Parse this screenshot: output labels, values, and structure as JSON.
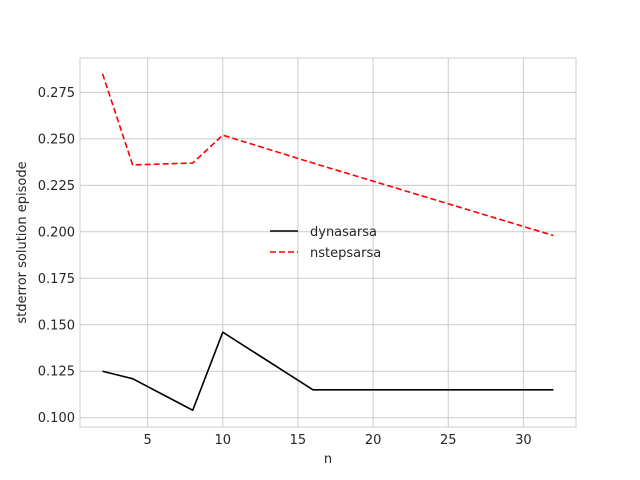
{
  "chart_data": {
    "type": "line",
    "xlabel": "n",
    "ylabel": "stderror solution episode",
    "xlim": [
      0.5,
      33.5
    ],
    "ylim": [
      0.095,
      0.2935
    ],
    "xticks": [
      5,
      10,
      15,
      20,
      25,
      30
    ],
    "yticks": [
      0.1,
      0.125,
      0.15,
      0.175,
      0.2,
      0.225,
      0.25,
      0.275
    ],
    "ytick_labels": [
      "0.100",
      "0.125",
      "0.150",
      "0.175",
      "0.200",
      "0.225",
      "0.250",
      "0.275"
    ],
    "grid": true,
    "legend_position": "center",
    "series": [
      {
        "name": "dynasarsa",
        "color": "#000000",
        "dash": "solid",
        "x": [
          2,
          4,
          8,
          10,
          16,
          32
        ],
        "y": [
          0.125,
          0.121,
          0.104,
          0.146,
          0.115,
          0.115
        ]
      },
      {
        "name": "nstepsarsa",
        "color": "#ff0000",
        "dash": "dashed",
        "x": [
          2,
          4,
          8,
          10,
          16,
          32
        ],
        "y": [
          0.285,
          0.236,
          0.237,
          0.252,
          0.237,
          0.198
        ]
      }
    ]
  }
}
